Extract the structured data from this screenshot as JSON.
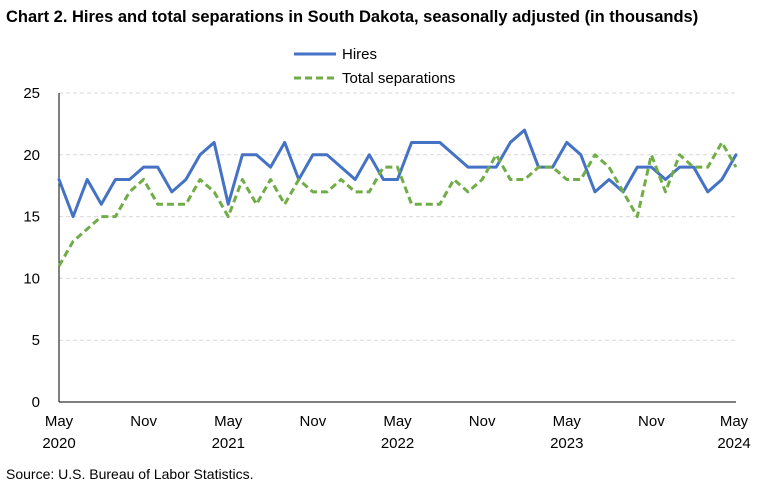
{
  "title": "Chart 2. Hires and total separations in South Dakota, seasonally adjusted (in thousands)",
  "source": "Source: U.S. Bureau of Labor Statistics.",
  "colors": {
    "hires": "#4472C4",
    "separations": "#70AD47",
    "grid": "#D9D9D9",
    "axis": "#000000"
  },
  "chart_data": {
    "type": "line",
    "title": "Chart 2. Hires and total separations in South Dakota, seasonally adjusted (in thousands)",
    "xlabel": "",
    "ylabel": "",
    "ylim": [
      0,
      25
    ],
    "yticks": [
      0,
      5,
      10,
      15,
      20,
      25
    ],
    "grid": "horizontal dashed",
    "legend_position": "top-center",
    "x_start": "May 2020",
    "x_end": "May 2024",
    "x_tick_labels": [
      {
        "month": "May",
        "year": "2020"
      },
      {
        "month": "Nov",
        "year": ""
      },
      {
        "month": "May",
        "year": "2021"
      },
      {
        "month": "Nov",
        "year": ""
      },
      {
        "month": "May",
        "year": "2022"
      },
      {
        "month": "Nov",
        "year": ""
      },
      {
        "month": "May",
        "year": "2023"
      },
      {
        "month": "Nov",
        "year": ""
      },
      {
        "month": "May",
        "year": "2024"
      }
    ],
    "series": [
      {
        "name": "Hires",
        "style": "solid",
        "values": [
          18,
          15,
          18,
          16,
          18,
          18,
          19,
          19,
          17,
          18,
          20,
          21,
          16,
          20,
          20,
          19,
          21,
          18,
          20,
          20,
          19,
          18,
          20,
          18,
          18,
          21,
          21,
          21,
          20,
          19,
          19,
          19,
          21,
          22,
          19,
          19,
          21,
          20,
          17,
          18,
          17,
          19,
          19,
          18,
          19,
          19,
          17,
          18,
          20
        ]
      },
      {
        "name": "Total separations",
        "style": "dashed",
        "values": [
          11,
          13,
          14,
          15,
          15,
          17,
          18,
          16,
          16,
          16,
          18,
          17,
          15,
          18,
          16,
          18,
          16,
          18,
          17,
          17,
          18,
          17,
          17,
          19,
          19,
          16,
          16,
          16,
          18,
          17,
          18,
          20,
          18,
          18,
          19,
          19,
          18,
          18,
          20,
          19,
          17,
          15,
          20,
          17,
          20,
          19,
          19,
          21,
          19
        ]
      }
    ]
  }
}
